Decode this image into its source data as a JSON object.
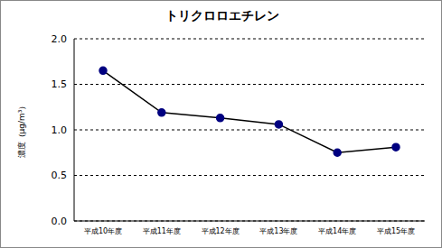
{
  "chart_data": {
    "type": "line",
    "title": "トリクロロエチレン",
    "y_label": "濃度（μg/m³）",
    "categories": [
      "平成10年度",
      "平成11年度",
      "平成12年度",
      "平成13年度",
      "平成14年度",
      "平成15年度"
    ],
    "values": [
      1.65,
      1.19,
      1.13,
      1.06,
      0.75,
      0.81
    ],
    "color": "#000080",
    "marker": "circle",
    "ylim": [
      0,
      2
    ],
    "yticks": [
      {
        "value": 0,
        "label": "0.0"
      },
      {
        "value": 0.5,
        "label": "0.5"
      },
      {
        "value": 1,
        "label": "1.0"
      },
      {
        "value": 1.5,
        "label": "1.5"
      },
      {
        "value": 2,
        "label": "2.0"
      }
    ],
    "grid": true
  }
}
